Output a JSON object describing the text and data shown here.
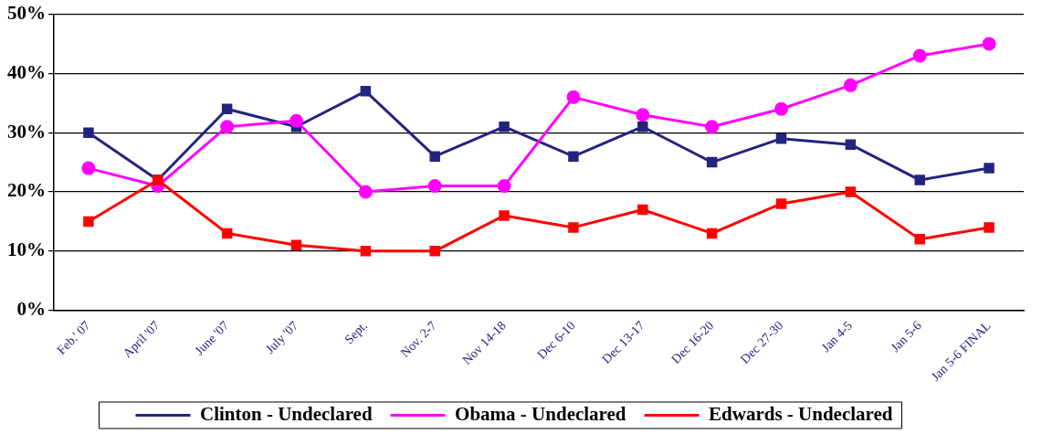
{
  "chart_data": {
    "type": "line",
    "categories": [
      "Feb.' 07",
      "April '07",
      "June '07",
      "July '07",
      "Sept.",
      "Nov. 2-7",
      "Nov 14-18",
      "Dec 6-10",
      "Dec 13-17",
      "Dec 16-20",
      "Dec 27-30",
      "Jan 4-5",
      "Jan 5-6",
      "Jan 5-6 FINAL"
    ],
    "series": [
      {
        "name": "Clinton - Undeclared",
        "color": "#24247f",
        "marker": "square",
        "values": [
          30,
          22,
          34,
          31,
          37,
          26,
          31,
          26,
          31,
          25,
          29,
          28,
          22,
          24
        ]
      },
      {
        "name": "Obama - Undeclared",
        "color": "#ff00ff",
        "marker": "circle",
        "values": [
          24,
          21,
          31,
          32,
          20,
          21,
          21,
          36,
          33,
          31,
          34,
          38,
          43,
          45
        ]
      },
      {
        "name": "Edwards - Undeclared",
        "color": "#ff0000",
        "marker": "square",
        "values": [
          15,
          22,
          13,
          11,
          10,
          10,
          16,
          14,
          17,
          13,
          18,
          20,
          12,
          14
        ]
      }
    ],
    "ylim": [
      0,
      50
    ],
    "yticks": [
      {
        "value": 0,
        "label": "0%"
      },
      {
        "value": 10,
        "label": "10%"
      },
      {
        "value": 20,
        "label": "20%"
      },
      {
        "value": 30,
        "label": "30%"
      },
      {
        "value": 40,
        "label": "40%"
      },
      {
        "value": 50,
        "label": "50%"
      }
    ],
    "grid": "y",
    "legend": "bottom",
    "line_style": "solid"
  }
}
